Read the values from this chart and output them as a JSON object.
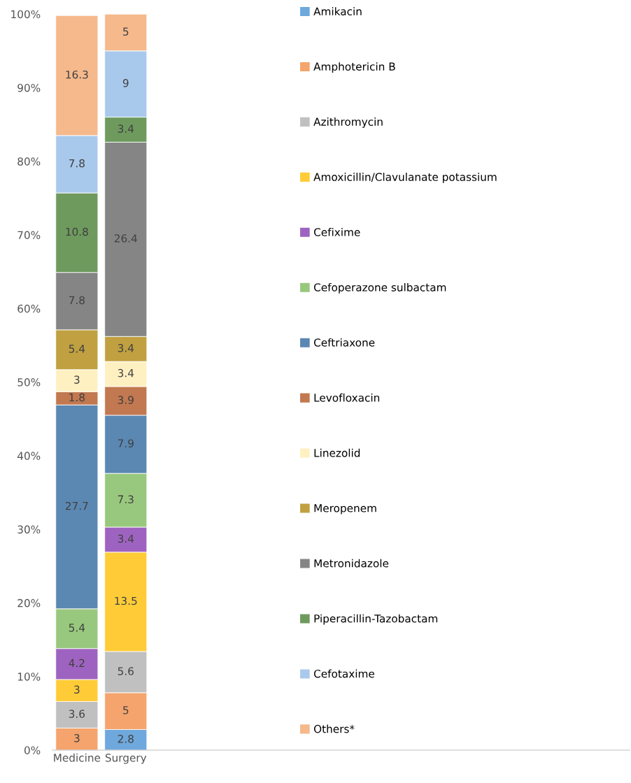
{
  "chart_data": {
    "type": "bar",
    "stacked": true,
    "categories": [
      "Medicine",
      "Surgery"
    ],
    "ylim": [
      0,
      100
    ],
    "yticks": [
      {
        "value": 0,
        "label": "0%"
      },
      {
        "value": 10,
        "label": "10%"
      },
      {
        "value": 20,
        "label": "20%"
      },
      {
        "value": 30,
        "label": "30%"
      },
      {
        "value": 40,
        "label": "40%"
      },
      {
        "value": 50,
        "label": "50%"
      },
      {
        "value": 60,
        "label": "60%"
      },
      {
        "value": 70,
        "label": "70%"
      },
      {
        "value": 80,
        "label": "80%"
      },
      {
        "value": 90,
        "label": "90%"
      },
      {
        "value": 100,
        "label": "100%"
      }
    ],
    "grid": false,
    "legend": "right",
    "data_labels": true,
    "series": [
      {
        "name": "Amikacin",
        "color": "#6fa8dc",
        "values": [
          null,
          2.8
        ]
      },
      {
        "name": "Amphotericin B",
        "color": "#f4a46c",
        "values": [
          3,
          5
        ]
      },
      {
        "name": "Azithromycin",
        "color": "#c0c0c0",
        "values": [
          3.6,
          5.6
        ]
      },
      {
        "name": "Amoxicillin/Clavulanate potassium",
        "color": "#ffcc38",
        "values": [
          3,
          13.5
        ]
      },
      {
        "name": "Cefixime",
        "color": "#9e63c0",
        "values": [
          4.2,
          3.4
        ]
      },
      {
        "name": "Cefoperazone sulbactam",
        "color": "#98c87e",
        "values": [
          5.4,
          7.3
        ]
      },
      {
        "name": "Ceftriaxone",
        "color": "#5b88b3",
        "values": [
          27.7,
          7.9
        ]
      },
      {
        "name": "Levofloxacin",
        "color": "#c27850",
        "values": [
          1.8,
          3.9
        ]
      },
      {
        "name": "Linezolid",
        "color": "#fff0c2",
        "values": [
          3,
          3.4
        ]
      },
      {
        "name": "Meropenem",
        "color": "#c0a040",
        "values": [
          5.4,
          3.4
        ]
      },
      {
        "name": "Metronidazole",
        "color": "#858585",
        "values": [
          7.8,
          26.4
        ]
      },
      {
        "name": "Piperacillin-Tazobactam",
        "color": "#6e9a5e",
        "values": [
          10.8,
          3.4
        ]
      },
      {
        "name": "Cefotaxime",
        "color": "#a9c9ec",
        "values": [
          7.8,
          9
        ]
      },
      {
        "name": "Others*",
        "color": "#f5b98c",
        "values": [
          16.3,
          5
        ]
      }
    ]
  }
}
